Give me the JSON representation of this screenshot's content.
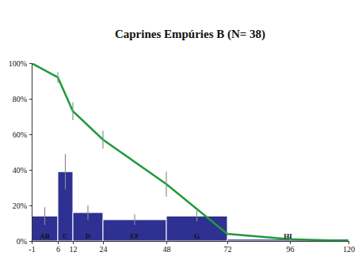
{
  "chart_data": {
    "type": "bar",
    "title": "Caprines Empúries B (N= 38)",
    "bins": [
      -1,
      6,
      12,
      24,
      48,
      72,
      120
    ],
    "categories": [
      "AB",
      "C",
      "D",
      "EF",
      "G",
      "HI"
    ],
    "xlim": [
      -1,
      120
    ],
    "xticks": [
      -1,
      6,
      12,
      24,
      48,
      72,
      96,
      120
    ],
    "ylim": [
      0,
      100
    ],
    "yticks": [
      {
        "value": 0,
        "label": "0%"
      },
      {
        "value": 20,
        "label": "20%"
      },
      {
        "value": 40,
        "label": "40%"
      },
      {
        "value": 60,
        "label": "60%"
      },
      {
        "value": 80,
        "label": "80%"
      },
      {
        "value": 100,
        "label": "100%"
      }
    ],
    "series": [
      {
        "type": "bar",
        "color": "#2e3192",
        "values": [
          14,
          39,
          16,
          12,
          14,
          1
        ],
        "errors": [
          5,
          10,
          4,
          3,
          3,
          1
        ]
      },
      {
        "type": "line",
        "color": "#1f9a3c",
        "x": [
          -1,
          6,
          12,
          24,
          48,
          72,
          96,
          120
        ],
        "values": [
          100,
          92,
          73,
          57,
          32,
          4,
          1,
          0
        ],
        "errors": [
          0,
          3,
          5,
          5,
          7,
          1,
          2,
          1
        ]
      }
    ]
  }
}
